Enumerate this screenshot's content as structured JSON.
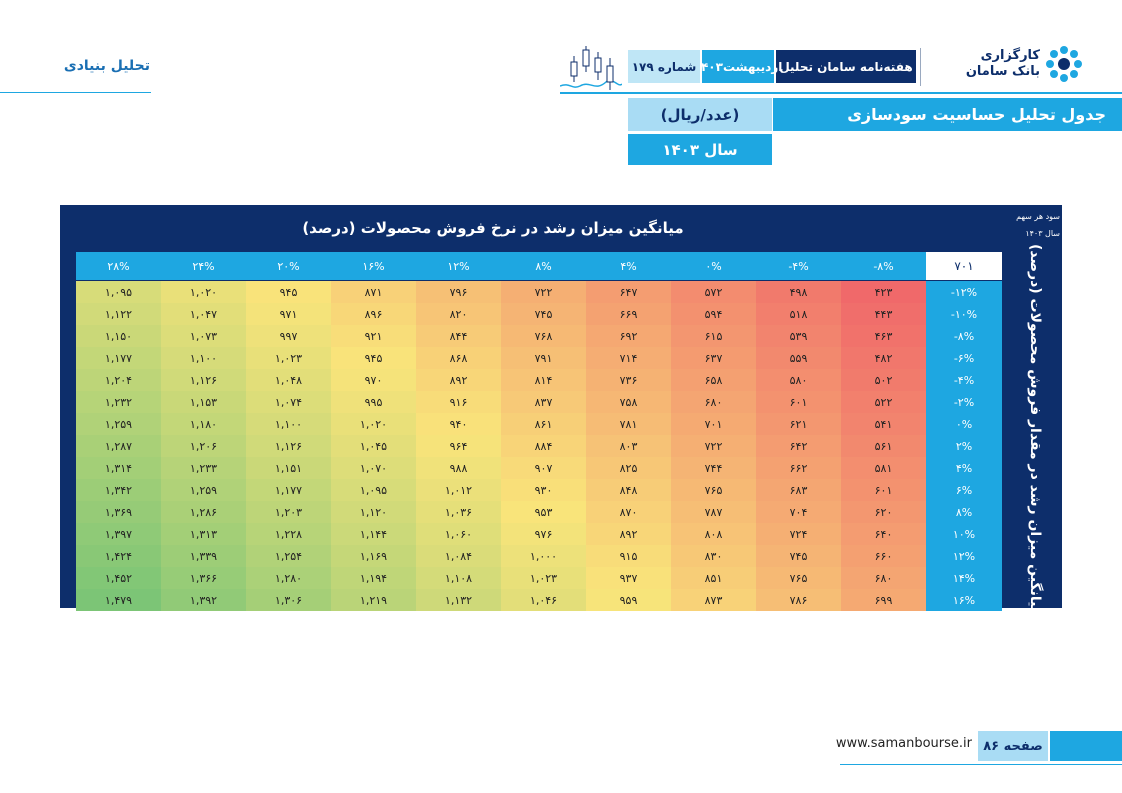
{
  "header": {
    "brand_line1": "کارگزاری",
    "brand_line2": "بانک سامان",
    "weekly": "هفته‌نامه سامان تحلیل",
    "date": "اردیبهشت۱۴۰۳",
    "issue": "شماره ۱۷۹",
    "section": "تحلیل بنیادی"
  },
  "titles": {
    "main": "جدول تحلیل حساسیت سودسازی",
    "unit": "(عدد/ریال)",
    "year": "سال ۱۴۰۳"
  },
  "table": {
    "column_title": "میانگین میزان رشد در نرخ فروش محصولات (درصد)",
    "row_title": "میانگین میزان رشد در مقدار فروش محصولات (درصد)",
    "corner_line1": "سود هر سهم",
    "corner_line2": "سال ۱۴۰۳",
    "base_value": "۷۰۱",
    "columns": [
      "-۸%",
      "-۴%",
      "۰%",
      "۴%",
      "۸%",
      "۱۲%",
      "۱۶%",
      "۲۰%",
      "۲۴%",
      "۲۸%"
    ],
    "rows": [
      {
        "label": "-۱۲%",
        "values": [
          "۴۲۳",
          "۴۹۸",
          "۵۷۲",
          "۶۴۷",
          "۷۲۲",
          "۷۹۶",
          "۸۷۱",
          "۹۴۵",
          "۱,۰۲۰",
          "۱,۰۹۵"
        ]
      },
      {
        "label": "-۱۰%",
        "values": [
          "۴۴۳",
          "۵۱۸",
          "۵۹۴",
          "۶۶۹",
          "۷۴۵",
          "۸۲۰",
          "۸۹۶",
          "۹۷۱",
          "۱,۰۴۷",
          "۱,۱۲۲"
        ]
      },
      {
        "label": "-۸%",
        "values": [
          "۴۶۳",
          "۵۳۹",
          "۶۱۵",
          "۶۹۲",
          "۷۶۸",
          "۸۴۴",
          "۹۲۱",
          "۹۹۷",
          "۱,۰۷۳",
          "۱,۱۵۰"
        ]
      },
      {
        "label": "-۶%",
        "values": [
          "۴۸۲",
          "۵۵۹",
          "۶۳۷",
          "۷۱۴",
          "۷۹۱",
          "۸۶۸",
          "۹۴۵",
          "۱,۰۲۳",
          "۱,۱۰۰",
          "۱,۱۷۷"
        ]
      },
      {
        "label": "-۴%",
        "values": [
          "۵۰۲",
          "۵۸۰",
          "۶۵۸",
          "۷۳۶",
          "۸۱۴",
          "۸۹۲",
          "۹۷۰",
          "۱,۰۴۸",
          "۱,۱۲۶",
          "۱,۲۰۴"
        ]
      },
      {
        "label": "-۲%",
        "values": [
          "۵۲۲",
          "۶۰۱",
          "۶۸۰",
          "۷۵۸",
          "۸۳۷",
          "۹۱۶",
          "۹۹۵",
          "۱,۰۷۴",
          "۱,۱۵۳",
          "۱,۲۳۲"
        ]
      },
      {
        "label": "۰%",
        "values": [
          "۵۴۱",
          "۶۲۱",
          "۷۰۱",
          "۷۸۱",
          "۸۶۱",
          "۹۴۰",
          "۱,۰۲۰",
          "۱,۱۰۰",
          "۱,۱۸۰",
          "۱,۲۵۹"
        ]
      },
      {
        "label": "۲%",
        "values": [
          "۵۶۱",
          "۶۴۲",
          "۷۲۲",
          "۸۰۳",
          "۸۸۴",
          "۹۶۴",
          "۱,۰۴۵",
          "۱,۱۲۶",
          "۱,۲۰۶",
          "۱,۲۸۷"
        ]
      },
      {
        "label": "۴%",
        "values": [
          "۵۸۱",
          "۶۶۲",
          "۷۴۴",
          "۸۲۵",
          "۹۰۷",
          "۹۸۸",
          "۱,۰۷۰",
          "۱,۱۵۱",
          "۱,۲۳۳",
          "۱,۳۱۴"
        ]
      },
      {
        "label": "۶%",
        "values": [
          "۶۰۱",
          "۶۸۳",
          "۷۶۵",
          "۸۴۸",
          "۹۳۰",
          "۱,۰۱۲",
          "۱,۰۹۵",
          "۱,۱۷۷",
          "۱,۲۵۹",
          "۱,۳۴۲"
        ]
      },
      {
        "label": "۸%",
        "values": [
          "۶۲۰",
          "۷۰۴",
          "۷۸۷",
          "۸۷۰",
          "۹۵۳",
          "۱,۰۳۶",
          "۱,۱۲۰",
          "۱,۲۰۳",
          "۱,۲۸۶",
          "۱,۳۶۹"
        ]
      },
      {
        "label": "۱۰%",
        "values": [
          "۶۴۰",
          "۷۲۴",
          "۸۰۸",
          "۸۹۲",
          "۹۷۶",
          "۱,۰۶۰",
          "۱,۱۴۴",
          "۱,۲۲۸",
          "۱,۳۱۳",
          "۱,۳۹۷"
        ]
      },
      {
        "label": "۱۲%",
        "values": [
          "۶۶۰",
          "۷۴۵",
          "۸۳۰",
          "۹۱۵",
          "۱,۰۰۰",
          "۱,۰۸۴",
          "۱,۱۶۹",
          "۱,۲۵۴",
          "۱,۳۳۹",
          "۱,۴۲۴"
        ]
      },
      {
        "label": "۱۴%",
        "values": [
          "۶۸۰",
          "۷۶۵",
          "۸۵۱",
          "۹۳۷",
          "۱,۰۲۳",
          "۱,۱۰۸",
          "۱,۱۹۴",
          "۱,۲۸۰",
          "۱,۳۶۶",
          "۱,۴۵۲"
        ]
      },
      {
        "label": "۱۶%",
        "values": [
          "۶۹۹",
          "۷۸۶",
          "۸۷۳",
          "۹۵۹",
          "۱,۰۴۶",
          "۱,۱۳۲",
          "۱,۲۱۹",
          "۱,۳۰۶",
          "۱,۳۹۲",
          "۱,۴۷۹"
        ]
      }
    ]
  },
  "footer": {
    "page": "صفحه ۸۶",
    "url": "www.samanbourse.ir"
  },
  "colors": {
    "navy": "#0d2e6b",
    "accent": "#1ea7e1",
    "light": "#a9dcf4",
    "heat_low": "#f0696a",
    "heat_mid": "#f9e47a",
    "heat_high": "#7cc576"
  }
}
